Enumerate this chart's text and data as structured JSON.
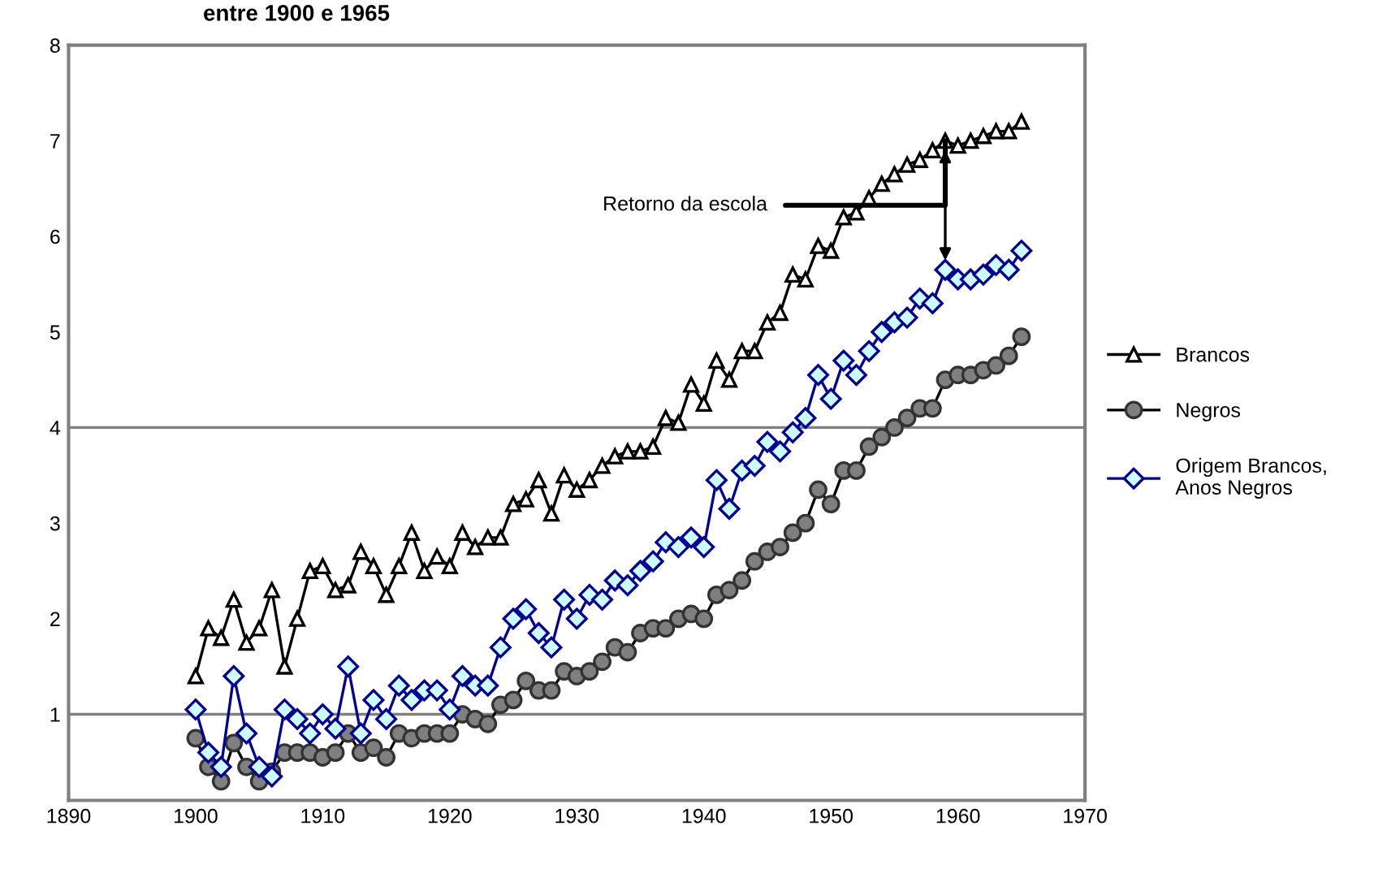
{
  "chart_data": {
    "type": "line",
    "title": "entre 1900 e 1965",
    "x": [
      1900,
      1901,
      1902,
      1903,
      1904,
      1905,
      1906,
      1907,
      1908,
      1909,
      1910,
      1911,
      1912,
      1913,
      1914,
      1915,
      1916,
      1917,
      1918,
      1919,
      1920,
      1921,
      1922,
      1923,
      1924,
      1925,
      1926,
      1927,
      1928,
      1929,
      1930,
      1931,
      1932,
      1933,
      1934,
      1935,
      1936,
      1937,
      1938,
      1939,
      1940,
      1941,
      1942,
      1943,
      1944,
      1945,
      1946,
      1947,
      1948,
      1949,
      1950,
      1951,
      1952,
      1953,
      1954,
      1955,
      1956,
      1957,
      1958,
      1959,
      1960,
      1961,
      1962,
      1963,
      1964,
      1965
    ],
    "series": [
      {
        "name": "Brancos",
        "color": "#000000",
        "marker": "triangle",
        "values": [
          1.4,
          1.9,
          1.8,
          2.2,
          1.75,
          1.9,
          2.3,
          1.5,
          2.0,
          2.5,
          2.55,
          2.3,
          2.35,
          2.7,
          2.55,
          2.25,
          2.55,
          2.9,
          2.5,
          2.65,
          2.55,
          2.9,
          2.75,
          2.85,
          2.85,
          3.2,
          3.25,
          3.45,
          3.1,
          3.5,
          3.35,
          3.45,
          3.6,
          3.7,
          3.75,
          3.75,
          3.8,
          4.1,
          4.05,
          4.45,
          4.25,
          4.7,
          4.5,
          4.8,
          4.8,
          5.1,
          5.2,
          5.6,
          5.55,
          5.9,
          5.85,
          6.2,
          6.25,
          6.4,
          6.55,
          6.65,
          6.75,
          6.8,
          6.9,
          7.0,
          6.95,
          7.0,
          7.05,
          7.1,
          7.1,
          7.2
        ]
      },
      {
        "name": "Negros",
        "color": "#7f7f7f",
        "marker": "circle",
        "values": [
          0.75,
          0.45,
          0.3,
          0.7,
          0.45,
          0.3,
          0.4,
          0.6,
          0.6,
          0.6,
          0.55,
          0.6,
          0.8,
          0.6,
          0.65,
          0.55,
          0.8,
          0.75,
          0.8,
          0.8,
          0.8,
          1.0,
          0.95,
          0.9,
          1.1,
          1.15,
          1.35,
          1.25,
          1.25,
          1.45,
          1.4,
          1.45,
          1.55,
          1.7,
          1.65,
          1.85,
          1.9,
          1.9,
          2.0,
          2.05,
          2.0,
          2.25,
          2.3,
          2.4,
          2.6,
          2.7,
          2.75,
          2.9,
          3.0,
          3.35,
          3.2,
          3.55,
          3.55,
          3.8,
          3.9,
          4.0,
          4.1,
          4.2,
          4.2,
          4.5,
          4.55,
          4.55,
          4.6,
          4.65,
          4.75,
          4.95
        ]
      },
      {
        "name": "Origem Brancos, Anos Negros",
        "color": "#000099",
        "marker": "diamond",
        "values": [
          1.05,
          0.6,
          0.45,
          1.4,
          0.8,
          0.45,
          0.35,
          1.05,
          0.95,
          0.8,
          1.0,
          0.85,
          1.5,
          0.8,
          1.15,
          0.95,
          1.3,
          1.15,
          1.25,
          1.25,
          1.05,
          1.4,
          1.3,
          1.3,
          1.7,
          2.0,
          2.1,
          1.85,
          1.7,
          2.2,
          2.0,
          2.25,
          2.2,
          2.4,
          2.35,
          2.5,
          2.6,
          2.8,
          2.75,
          2.85,
          2.75,
          3.45,
          3.15,
          3.55,
          3.6,
          3.85,
          3.75,
          3.95,
          4.1,
          4.55,
          4.3,
          4.7,
          4.55,
          4.8,
          5.0,
          5.1,
          5.15,
          5.35,
          5.3,
          5.65,
          5.55,
          5.55,
          5.6,
          5.7,
          5.65,
          5.85
        ]
      }
    ],
    "xlim": [
      1890,
      1970
    ],
    "xticks": [
      1890,
      1900,
      1910,
      1920,
      1930,
      1940,
      1950,
      1960,
      1970
    ],
    "ylim": [
      0.1,
      8
    ],
    "yticks": [
      1,
      2,
      3,
      4,
      5,
      6,
      7,
      8
    ],
    "ref_lines": [
      {
        "axis": "y",
        "value": 1,
        "color": "#808080"
      },
      {
        "axis": "y",
        "value": 4,
        "color": "#808080"
      }
    ],
    "annotations": [
      {
        "text": "Retorno da escola",
        "x": 1959,
        "y": 7.0
      }
    ],
    "grid": false,
    "legend": "right",
    "line_style": "solid"
  }
}
